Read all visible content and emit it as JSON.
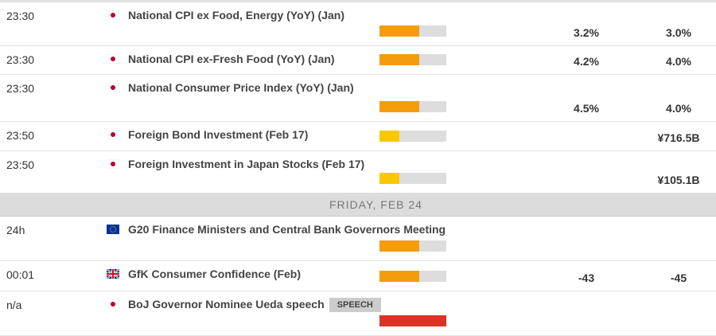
{
  "colors": {
    "medium": "#f59c0d",
    "low": "#f9c800",
    "high": "#d93425",
    "track": "#dddddd"
  },
  "events_thu": [
    {
      "time": "23:30",
      "flag": "japan-flag",
      "title": "National CPI ex Food, Energy (YoY) (Jan)",
      "impact": "medium",
      "impact_level": 0.6,
      "actual": "3.2%",
      "forecast": "3.0%"
    },
    {
      "time": "23:30",
      "flag": "japan-flag",
      "title": "National CPI ex-Fresh Food (YoY) (Jan)",
      "impact": "medium",
      "impact_level": 0.6,
      "actual": "4.2%",
      "forecast": "4.0%"
    },
    {
      "time": "23:30",
      "flag": "japan-flag",
      "title": "National Consumer Price Index (YoY) (Jan)",
      "impact": "medium",
      "impact_level": 0.6,
      "actual": "4.5%",
      "forecast": "4.0%"
    },
    {
      "time": "23:50",
      "flag": "japan-flag",
      "title": "Foreign Bond Investment (Feb 17)",
      "impact": "low",
      "impact_level": 0.3,
      "actual": "",
      "forecast": "¥716.5B"
    },
    {
      "time": "23:50",
      "flag": "japan-flag",
      "title": "Foreign Investment in Japan Stocks (Feb 17)",
      "impact": "low",
      "impact_level": 0.3,
      "actual": "",
      "forecast": "¥105.1B"
    }
  ],
  "date_header": "FRIDAY, FEB 24",
  "events_fri": [
    {
      "time": "24h",
      "flag": "eu-flag",
      "title": "G20 Finance Ministers and Central Bank Governors Meeting",
      "impact": "medium",
      "impact_level": 0.6,
      "actual": "",
      "forecast": ""
    },
    {
      "time": "00:01",
      "flag": "uk-flag",
      "title": "GfK Consumer Confidence (Feb)",
      "impact": "medium",
      "impact_level": 0.6,
      "actual": "-43",
      "forecast": "-45"
    },
    {
      "time": "n/a",
      "flag": "japan-flag",
      "title": "BoJ Governor Nominee Ueda speech",
      "badge": "SPEECH",
      "impact": "high",
      "impact_level": 1.0,
      "actual": "",
      "forecast": ""
    }
  ]
}
